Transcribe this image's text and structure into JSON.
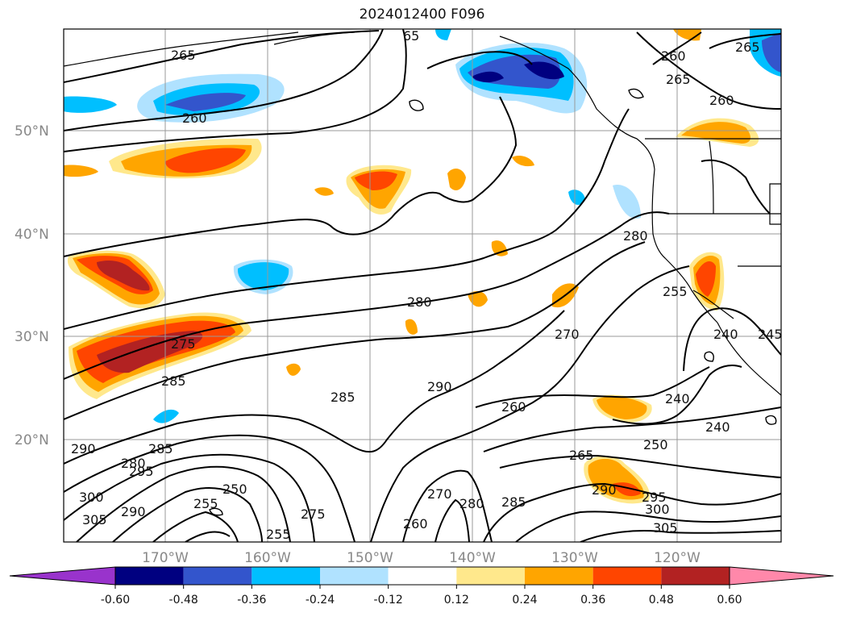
{
  "title": "2024012400 F096",
  "map": {
    "lat_labels": [
      "50°N",
      "40°N",
      "30°N",
      "20°N"
    ],
    "lon_labels": [
      "170°W",
      "160°W",
      "150°W",
      "140°W",
      "130°W",
      "120°W"
    ],
    "contour_labels": [
      "265",
      "260",
      "265",
      "260",
      "265",
      "260",
      "65",
      "275",
      "285",
      "280",
      "280",
      "255",
      "240",
      "245",
      "270",
      "290",
      "285",
      "260",
      "240",
      "240",
      "250",
      "265",
      "290",
      "295",
      "300",
      "305",
      "290",
      "285",
      "295",
      "300",
      "305",
      "290",
      "280",
      "250",
      "255",
      "270",
      "275",
      "280",
      "285",
      "260",
      "255"
    ],
    "colors": {
      "grid": "#999999",
      "contour": "#000000",
      "coast": "#000000"
    }
  },
  "colorbar": {
    "labels": [
      "-0.60",
      "-0.48",
      "-0.36",
      "-0.24",
      "-0.12",
      "0.12",
      "0.24",
      "0.36",
      "0.48",
      "0.60"
    ],
    "colors": [
      "#9933cc",
      "#000080",
      "#3355cc",
      "#00bfff",
      "#b0e2ff",
      "#ffffff",
      "#ffe88c",
      "#ffa500",
      "#ff4500",
      "#b22222",
      "#ff88aa"
    ]
  }
}
